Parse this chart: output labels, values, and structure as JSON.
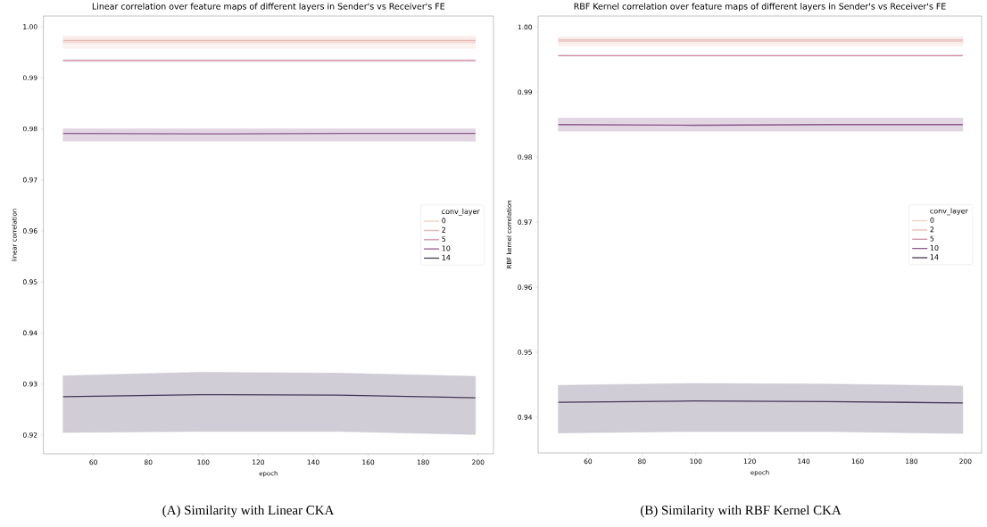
{
  "chart_data": [
    {
      "type": "line",
      "title": "Linear correlation over feature maps of different layers in Sender's vs Receiver's FE",
      "xlabel": "epoch",
      "ylabel": "linear correlation",
      "legend_title": "conv_layer",
      "legend": "right",
      "x": [
        49,
        99,
        149,
        199
      ],
      "xlim": [
        41.8,
        205.6
      ],
      "xticks": [
        60,
        80,
        100,
        120,
        140,
        160,
        180,
        200
      ],
      "ylim": [
        0.9163,
        1.0021
      ],
      "yticks": [
        0.92,
        0.93,
        0.94,
        0.95,
        0.96,
        0.97,
        0.98,
        0.99,
        {
          "value": 1.0,
          "label": "1.00"
        }
      ],
      "series": [
        {
          "name": "0",
          "color": "#efcfc4",
          "values": [
            0.997,
            0.997,
            0.997,
            0.997
          ],
          "lower": [
            0.9957,
            0.9957,
            0.9957,
            0.9957
          ],
          "upper": [
            0.9982,
            0.9982,
            0.9982,
            0.9982
          ]
        },
        {
          "name": "2",
          "color": "#e6b5b5",
          "values": [
            0.9973,
            0.9973,
            0.9973,
            0.9973
          ],
          "lower": [
            0.9966,
            0.9966,
            0.9966,
            0.9966
          ],
          "upper": [
            0.998,
            0.998,
            0.998,
            0.998
          ]
        },
        {
          "name": "5",
          "color": "#cf8fa8",
          "values": [
            0.9934,
            0.9934,
            0.9934,
            0.9934
          ],
          "lower": [
            0.9932,
            0.9932,
            0.9932,
            0.9932
          ],
          "upper": [
            0.9936,
            0.9936,
            0.9936,
            0.9936
          ]
        },
        {
          "name": "10",
          "color": "#8c5a8e",
          "values": [
            0.9791,
            0.979,
            0.9791,
            0.9791
          ],
          "lower": [
            0.9776,
            0.9776,
            0.9776,
            0.9776
          ],
          "upper": [
            0.98,
            0.98,
            0.98,
            0.98
          ]
        },
        {
          "name": "14",
          "color": "#45375a",
          "values": [
            0.9275,
            0.9279,
            0.9278,
            0.9273
          ],
          "lower": [
            0.9205,
            0.9207,
            0.9207,
            0.9201
          ],
          "upper": [
            0.9316,
            0.9323,
            0.9321,
            0.9315
          ]
        }
      ],
      "annotations": [
        "(A) Similarity with Linear CKA"
      ]
    },
    {
      "type": "line",
      "title": "RBF Kernel correlation over feature maps of different layers in Sender's vs Receiver's FE",
      "xlabel": "epoch",
      "ylabel": "RBF kernel correlation",
      "legend_title": "conv_layer",
      "legend": "right",
      "x": [
        49,
        99,
        149,
        199
      ],
      "xlim": [
        41.5,
        206
      ],
      "xticks": [
        60,
        80,
        100,
        120,
        140,
        160,
        180,
        200
      ],
      "ylim": [
        0.9345,
        1.0017
      ],
      "yticks": [
        0.94,
        0.95,
        0.96,
        0.97,
        0.98,
        0.99,
        {
          "value": 1.0,
          "label": "1.00"
        }
      ],
      "series": [
        {
          "name": "0",
          "color": "#efcfc4",
          "values": [
            0.9978,
            0.9978,
            0.9978,
            0.9978
          ],
          "lower": [
            0.9971,
            0.9971,
            0.9971,
            0.9971
          ],
          "upper": [
            0.9985,
            0.9985,
            0.9985,
            0.9985
          ]
        },
        {
          "name": "2",
          "color": "#e6b5b5",
          "values": [
            0.998,
            0.998,
            0.998,
            0.998
          ],
          "lower": [
            0.9975,
            0.9975,
            0.9975,
            0.9975
          ],
          "upper": [
            0.9984,
            0.9984,
            0.9984,
            0.9984
          ]
        },
        {
          "name": "5",
          "color": "#cf8fa8",
          "values": [
            0.9956,
            0.9956,
            0.9956,
            0.9956
          ],
          "lower": [
            0.9955,
            0.9955,
            0.9955,
            0.9955
          ],
          "upper": [
            0.9957,
            0.9957,
            0.9957,
            0.9957
          ]
        },
        {
          "name": "10",
          "color": "#8c5a8e",
          "values": [
            0.985,
            0.9849,
            0.985,
            0.985
          ],
          "lower": [
            0.984,
            0.984,
            0.984,
            0.984
          ],
          "upper": [
            0.986,
            0.986,
            0.986,
            0.986
          ]
        },
        {
          "name": "14",
          "color": "#45375a",
          "values": [
            0.9423,
            0.9425,
            0.9424,
            0.9422
          ],
          "lower": [
            0.9376,
            0.9378,
            0.9378,
            0.9375
          ],
          "upper": [
            0.9449,
            0.9452,
            0.9451,
            0.9448
          ]
        }
      ],
      "annotations": [
        "(B) Similarity with RBF Kernel CKA"
      ]
    }
  ]
}
